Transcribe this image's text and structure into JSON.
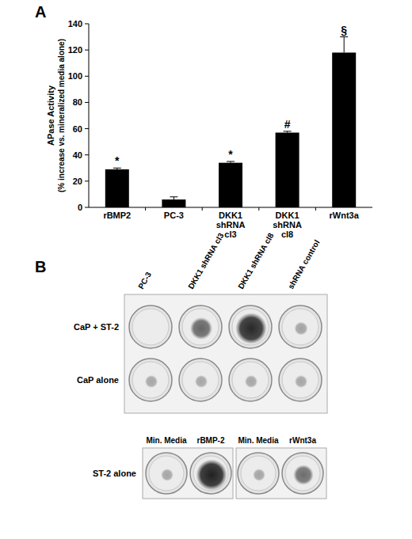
{
  "panel_letters": [
    "A",
    "B"
  ],
  "chart_data": {
    "type": "bar",
    "ylabel": "APase Activity (% increase vs. mineralized media alone)",
    "categories": [
      "rBMP2",
      "PC-3",
      "DKK1 shRNA cl3",
      "DKK1 shRNA cl8",
      "rWnt3a"
    ],
    "values": [
      29,
      6,
      34,
      57,
      118
    ],
    "errors": [
      1,
      2,
      1,
      1,
      12
    ],
    "annotations": [
      "*",
      null,
      "*",
      "#",
      "§"
    ],
    "color": "#000000",
    "ylim": [
      0,
      140
    ],
    "yticks": [
      0,
      20,
      40,
      60,
      80,
      100,
      120,
      140
    ],
    "grid": false
  },
  "panel_b": {
    "top_plate": {
      "columns": [
        "PC-3",
        "DKK1 shRNA cl3",
        "DKK1 shRNA cl8",
        "shRNA control"
      ],
      "rows": [
        "CaP + ST-2",
        "CaP alone"
      ]
    },
    "bottom_plates": {
      "row": "ST-2 alone",
      "columns": [
        "Min. Media",
        "rBMP-2",
        "Min. Media",
        "rWnt3a"
      ]
    }
  }
}
